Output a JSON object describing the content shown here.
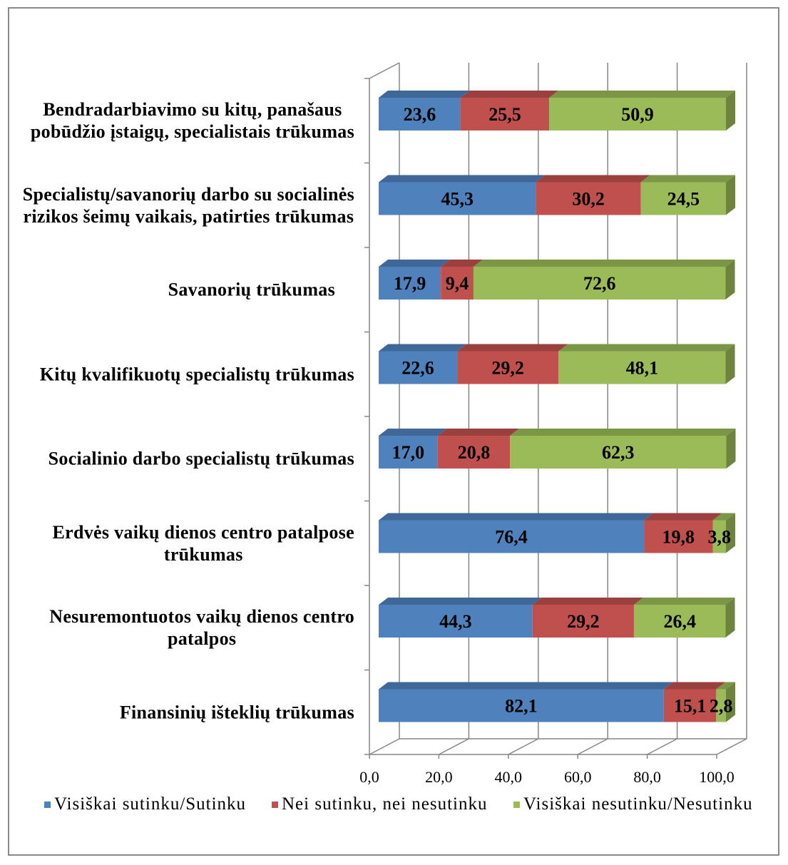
{
  "chart_data": {
    "type": "bar",
    "orientation": "horizontal",
    "stacked": true,
    "style": "3d",
    "categories": [
      "Bendradarbiavimo su kitų, panašaus\npobūdžio įstaigų, specialistais trūkumas",
      "Specialistų/savanorių darbo su socialinės\nrizikos šeimų vaikais, patirties trūkumas",
      "Savanorių trūkumas",
      "Kitų kvalifikuotų specialistų trūkumas",
      "Socialinio darbo specialistų trūkumas",
      "Erdvės vaikų dienos centro patalpose\ntrūkumas",
      "Nesuremontuotos vaikų dienos centro\npatalpos",
      "Finansinių išteklių trūkumas"
    ],
    "series": [
      {
        "name": "Visiškai sutinku/Sutinku",
        "color": "#4F81BD",
        "values": [
          23.6,
          45.3,
          17.9,
          22.6,
          17.0,
          76.4,
          44.3,
          82.1
        ]
      },
      {
        "name": "Nei sutinku, nei nesutinku",
        "color": "#C0504D",
        "values": [
          25.5,
          30.2,
          9.4,
          29.2,
          20.8,
          19.8,
          29.2,
          15.1
        ]
      },
      {
        "name": "Visiškai nesutinku/Nesutinku",
        "color": "#9BBB59",
        "values": [
          50.9,
          24.5,
          72.6,
          48.1,
          62.3,
          3.8,
          26.4,
          2.8
        ]
      }
    ],
    "xlim": [
      0,
      100
    ],
    "x_ticks": [
      0,
      20,
      40,
      60,
      80,
      100
    ],
    "x_tick_labels": [
      "0,0",
      "20,0",
      "40,0",
      "60,0",
      "80,0",
      "100,0"
    ],
    "data_labels": true,
    "grid": true,
    "legend_position": "bottom"
  }
}
